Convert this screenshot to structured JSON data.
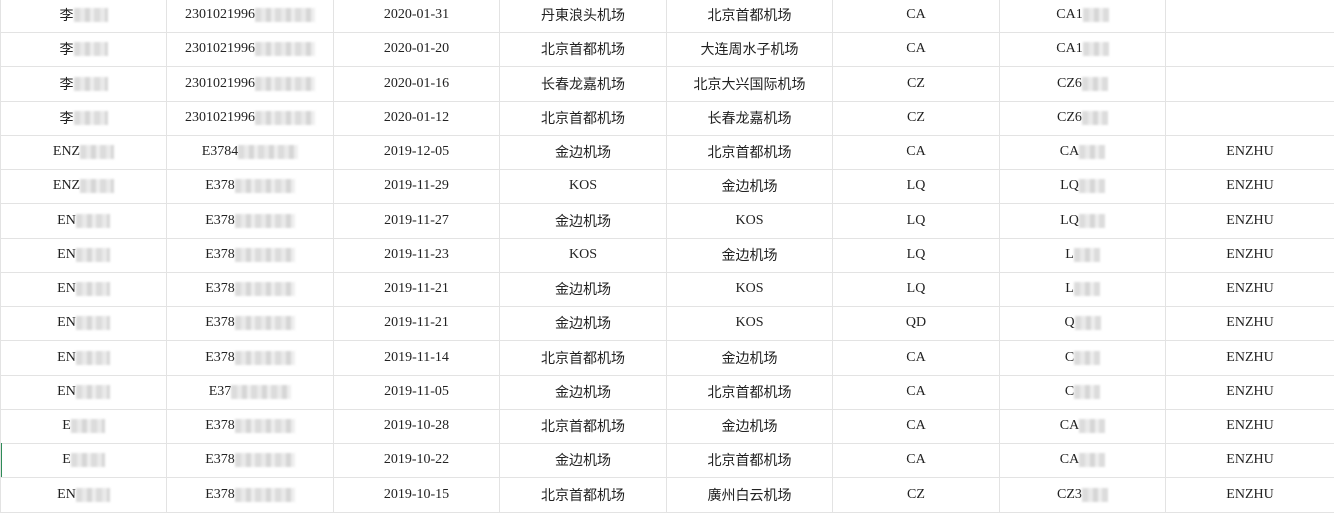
{
  "rows": [
    {
      "name": "李",
      "id": "2301021996",
      "date": "2020-01-31",
      "from": "丹東浪头机场",
      "to": "北京首都机场",
      "airline": "CA",
      "flight": "CA1",
      "pax": ""
    },
    {
      "name": "李",
      "id": "2301021996",
      "date": "2020-01-20",
      "from": "北京首都机场",
      "to": "大连周水子机场",
      "airline": "CA",
      "flight": "CA1",
      "pax": ""
    },
    {
      "name": "李",
      "id": "2301021996",
      "date": "2020-01-16",
      "from": "长春龙嘉机场",
      "to": "北京大兴国际机场",
      "airline": "CZ",
      "flight": "CZ6",
      "pax": ""
    },
    {
      "name": "李",
      "id": "2301021996",
      "date": "2020-01-12",
      "from": "北京首都机场",
      "to": "长春龙嘉机场",
      "airline": "CZ",
      "flight": "CZ6",
      "pax": ""
    },
    {
      "name": "ENZ",
      "id": "E3784",
      "date": "2019-12-05",
      "from": "金边机场",
      "to": "北京首都机场",
      "airline": "CA",
      "flight": "CA",
      "pax": "ENZHU"
    },
    {
      "name": "ENZ",
      "id": "E378",
      "date": "2019-11-29",
      "from": "KOS",
      "to": "金边机场",
      "airline": "LQ",
      "flight": "LQ",
      "pax": "ENZHU"
    },
    {
      "name": "EN",
      "id": "E378",
      "date": "2019-11-27",
      "from": "金边机场",
      "to": "KOS",
      "airline": "LQ",
      "flight": "LQ",
      "pax": "ENZHU"
    },
    {
      "name": "EN",
      "id": "E378",
      "date": "2019-11-23",
      "from": "KOS",
      "to": "金边机场",
      "airline": "LQ",
      "flight": "L",
      "pax": "ENZHU"
    },
    {
      "name": "EN",
      "id": "E378",
      "date": "2019-11-21",
      "from": "金边机场",
      "to": "KOS",
      "airline": "LQ",
      "flight": "L",
      "pax": "ENZHU"
    },
    {
      "name": "EN",
      "id": "E378",
      "date": "2019-11-21",
      "from": "金边机场",
      "to": "KOS",
      "airline": "QD",
      "flight": "Q",
      "pax": "ENZHU"
    },
    {
      "name": "EN",
      "id": "E378",
      "date": "2019-11-14",
      "from": "北京首都机场",
      "to": "金边机场",
      "airline": "CA",
      "flight": "C",
      "pax": "ENZHU"
    },
    {
      "name": "EN",
      "id": "E37",
      "date": "2019-11-05",
      "from": "金边机场",
      "to": "北京首都机场",
      "airline": "CA",
      "flight": "C",
      "pax": "ENZHU"
    },
    {
      "name": "E",
      "id": "E378",
      "date": "2019-10-28",
      "from": "北京首都机场",
      "to": "金边机场",
      "airline": "CA",
      "flight": "CA",
      "pax": "ENZHU"
    },
    {
      "name": "E",
      "id": "E378",
      "date": "2019-10-22",
      "from": "金边机场",
      "to": "北京首都机场",
      "airline": "CA",
      "flight": "CA",
      "pax": "ENZHU"
    },
    {
      "name": "EN",
      "id": "E378",
      "date": "2019-10-15",
      "from": "北京首都机场",
      "to": "廣州白云机场",
      "airline": "CZ",
      "flight": "CZ3",
      "pax": "ENZHU"
    }
  ],
  "colors": {
    "grid_line": "#e3e3e3",
    "selection_marker": "#2e8b57"
  }
}
